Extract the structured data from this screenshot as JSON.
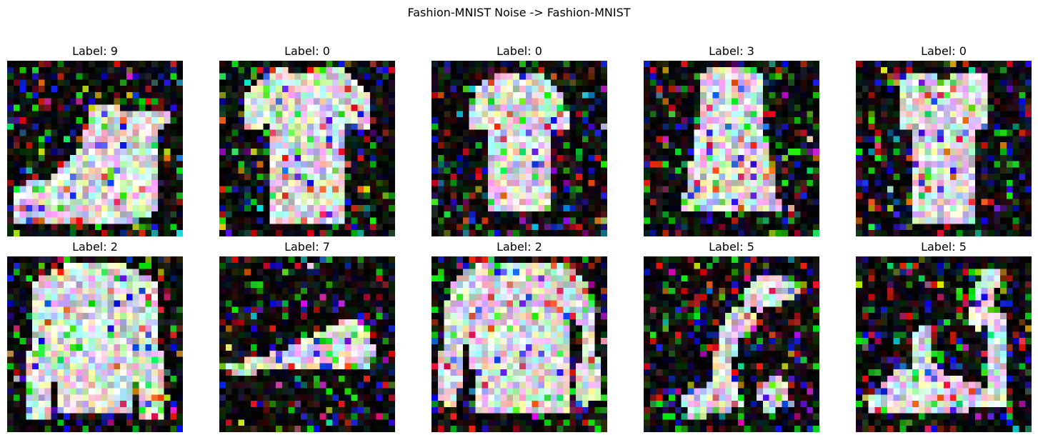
{
  "figure": {
    "title": "Fashion-MNIST Noise -> Fashion-MNIST"
  },
  "panels": [
    {
      "label": "Label: 9",
      "class_id": 9,
      "image": "noisy-ankle-boot-image"
    },
    {
      "label": "Label: 0",
      "class_id": 0,
      "image": "noisy-tshirt-top-image"
    },
    {
      "label": "Label: 0",
      "class_id": 0,
      "image": "noisy-tshirt-top-image"
    },
    {
      "label": "Label: 3",
      "class_id": 3,
      "image": "noisy-dress-image"
    },
    {
      "label": "Label: 0",
      "class_id": 0,
      "image": "noisy-tshirt-top-image"
    },
    {
      "label": "Label: 2",
      "class_id": 2,
      "image": "noisy-pullover-image"
    },
    {
      "label": "Label: 7",
      "class_id": 7,
      "image": "noisy-sneaker-image"
    },
    {
      "label": "Label: 2",
      "class_id": 2,
      "image": "noisy-pullover-image"
    },
    {
      "label": "Label: 5",
      "class_id": 5,
      "image": "noisy-sandal-image"
    },
    {
      "label": "Label: 5",
      "class_id": 5,
      "image": "noisy-sandal-image"
    }
  ]
}
